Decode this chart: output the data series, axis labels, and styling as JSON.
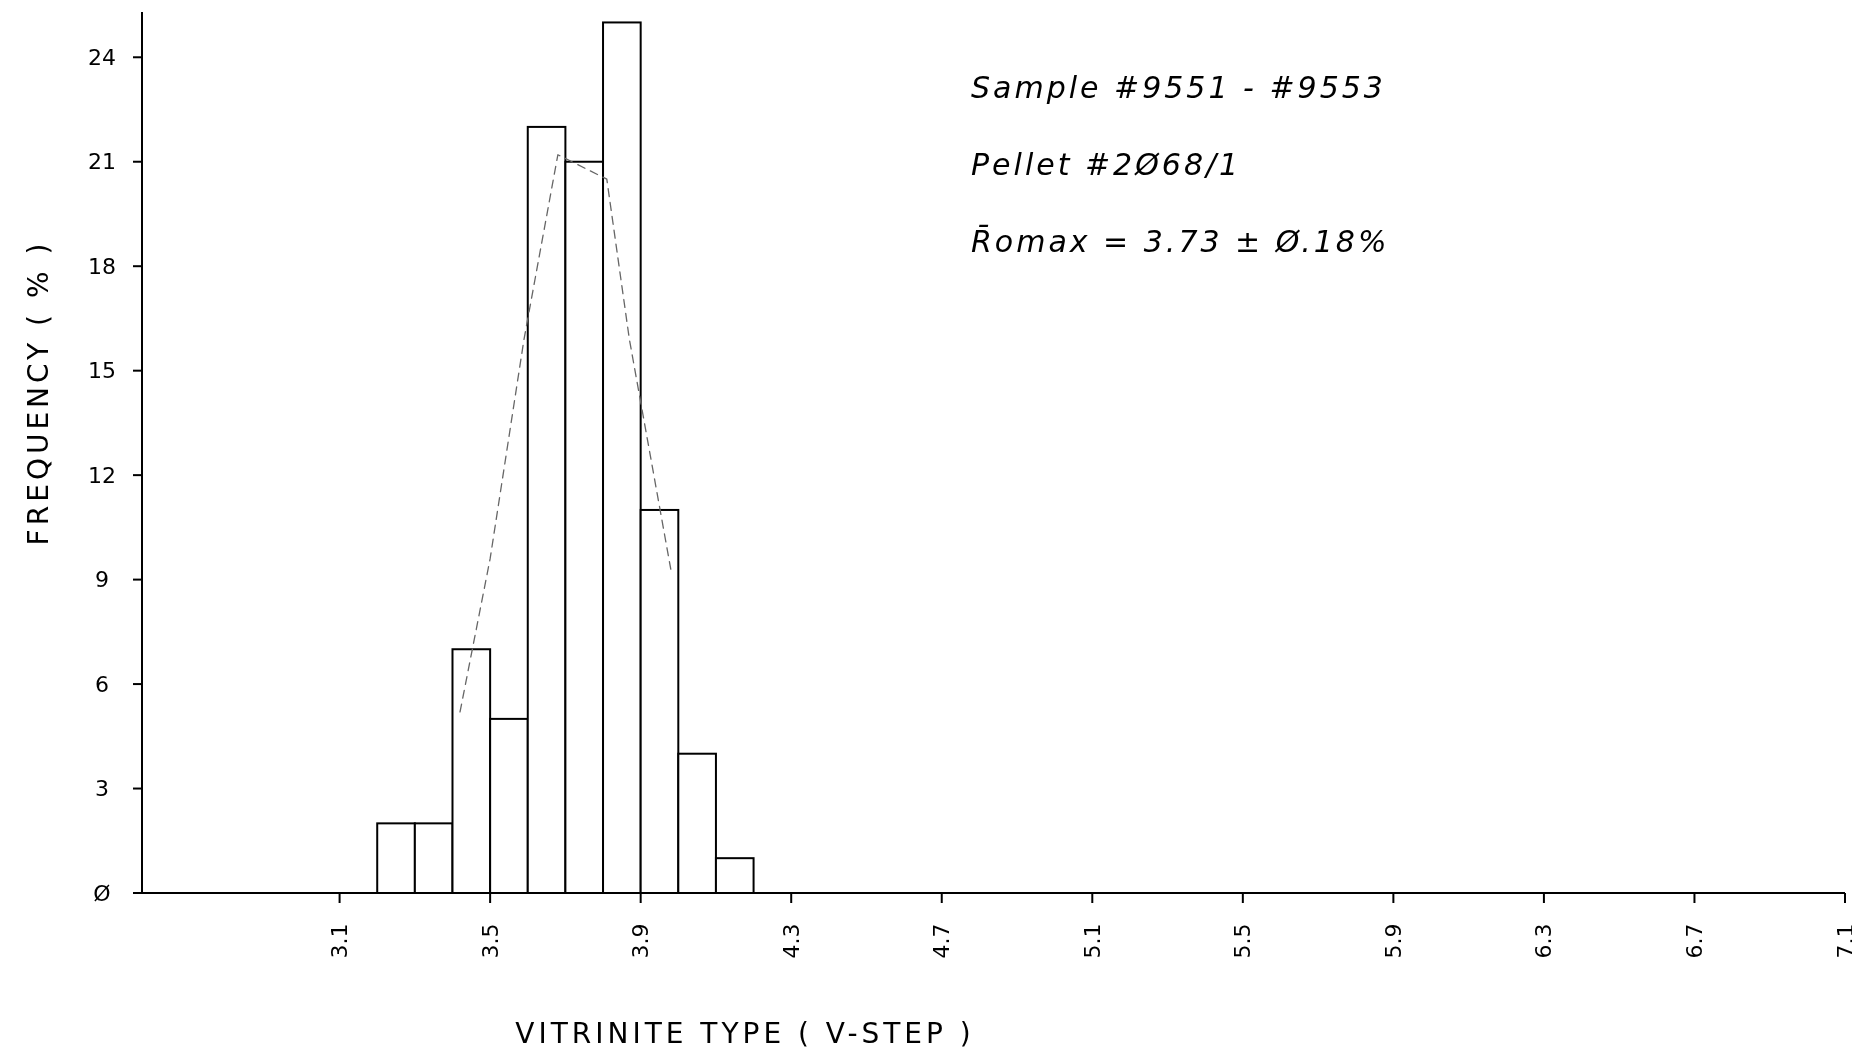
{
  "chart_data": {
    "type": "histogram",
    "xlabel": "VITRINITE TYPE ( V-STEP )",
    "ylabel": "FREQUENCY ( % )",
    "bins": [
      3.2,
      3.3,
      3.4,
      3.5,
      3.6,
      3.7,
      3.8,
      3.9,
      4.0,
      4.1,
      4.2
    ],
    "values": [
      2,
      2,
      7,
      5,
      22,
      21,
      25,
      11,
      4,
      1
    ],
    "color": "#ffffff",
    "series": [
      {
        "type": "line",
        "color": "#666666",
        "x": [
          3.42,
          3.5,
          3.59,
          3.68,
          3.81,
          3.87,
          3.98
        ],
        "values": [
          5.2,
          9.6,
          15.9,
          21.2,
          20.5,
          15.9,
          9.3
        ]
      }
    ],
    "line_style": "dashed",
    "xlim": [
      2.575,
      7.1
    ],
    "xticks": [
      3.1,
      3.5,
      3.9,
      4.3,
      4.7,
      5.1,
      5.5,
      5.9,
      6.3,
      6.7,
      7.1
    ],
    "ylim": [
      0,
      25.3
    ],
    "yticks": [
      {
        "value": 0,
        "label": "Ø"
      },
      3,
      6,
      9,
      12,
      15,
      18,
      21,
      24
    ],
    "annotations": [
      "Sample #9551 - #9553",
      "Pellet #2Ø68/1",
      "R̄omax = 3.73 ± Ø.18%"
    ],
    "grid": false
  }
}
